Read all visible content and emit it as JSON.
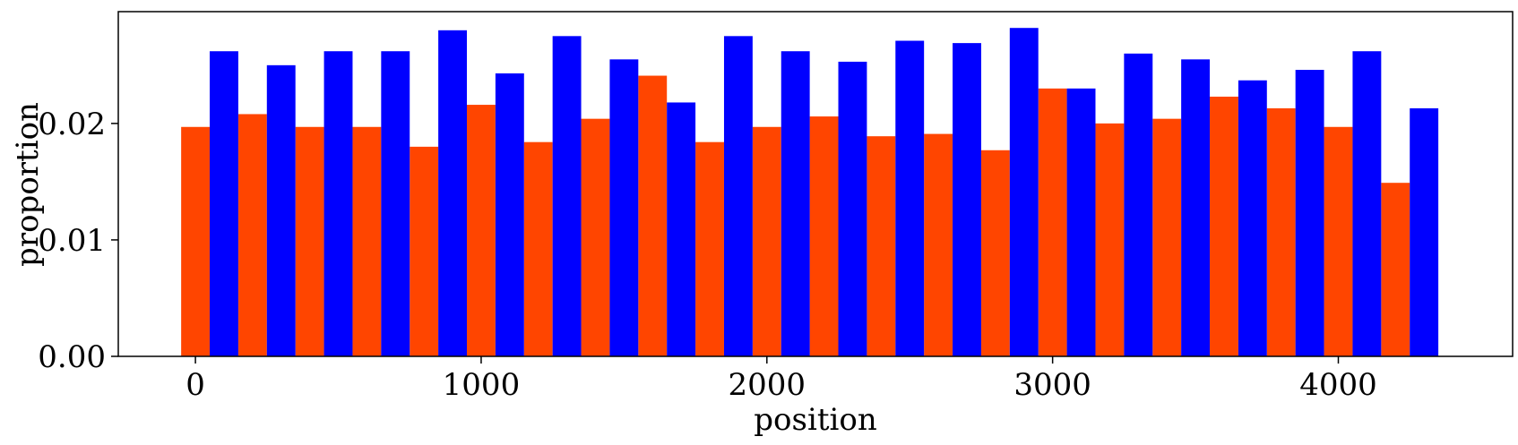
{
  "chart_data": {
    "type": "bar",
    "title": "",
    "xlabel": "position",
    "ylabel": "proportion",
    "xlim": [
      -270,
      4610
    ],
    "ylim": [
      0,
      0.0296
    ],
    "bin_width": 100,
    "grid": false,
    "xticks": [
      0,
      1000,
      2000,
      3000,
      4000
    ],
    "xtick_labels": [
      "0",
      "1000",
      "2000",
      "3000",
      "4000"
    ],
    "yticks": [
      0,
      0.01,
      0.02
    ],
    "ytick_labels": [
      "0.00",
      "0.01",
      "0.02"
    ],
    "series": [
      {
        "color": "#ff4500",
        "x": [
          0,
          200,
          400,
          600,
          800,
          1000,
          1200,
          1400,
          1600,
          1800,
          2000,
          2200,
          2400,
          2600,
          2800,
          3000,
          3200,
          3400,
          3600,
          3800,
          4000,
          4200
        ],
        "values": [
          0.0197,
          0.0208,
          0.0197,
          0.0197,
          0.018,
          0.0216,
          0.0184,
          0.0204,
          0.0241,
          0.0184,
          0.0197,
          0.0206,
          0.0189,
          0.0191,
          0.0177,
          0.023,
          0.02,
          0.0204,
          0.0223,
          0.0213,
          0.0197,
          0.0149
        ]
      },
      {
        "color": "#0000ff",
        "x": [
          100,
          300,
          500,
          700,
          900,
          1100,
          1300,
          1500,
          1700,
          1900,
          2100,
          2300,
          2500,
          2700,
          2900,
          3100,
          3300,
          3500,
          3700,
          3900,
          4100,
          4300
        ],
        "values": [
          0.0262,
          0.025,
          0.0262,
          0.0262,
          0.028,
          0.0243,
          0.0275,
          0.0255,
          0.0218,
          0.0275,
          0.0262,
          0.0253,
          0.0271,
          0.0269,
          0.0282,
          0.023,
          0.026,
          0.0255,
          0.0237,
          0.0246,
          0.0262,
          0.0213
        ]
      }
    ]
  }
}
